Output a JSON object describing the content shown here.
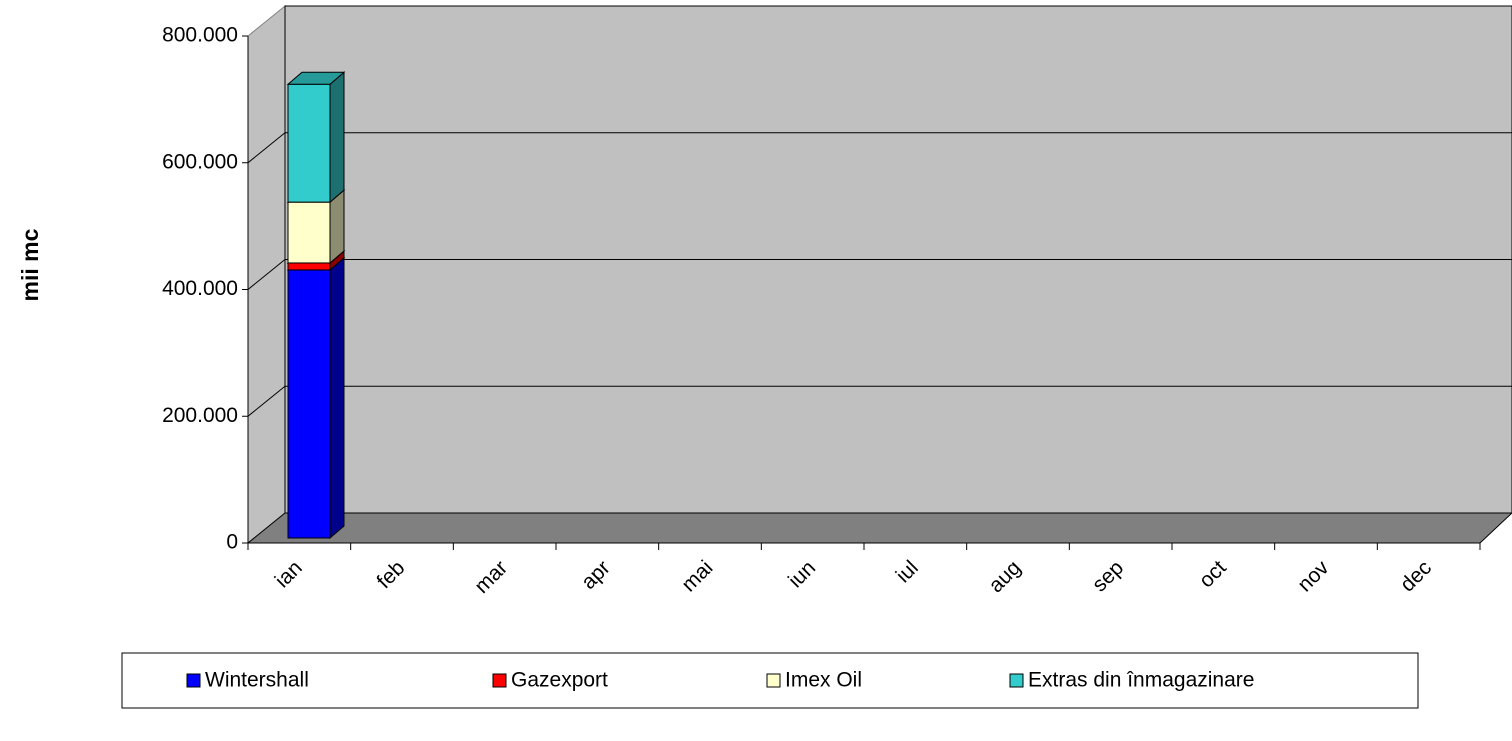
{
  "chart_data": {
    "type": "bar3d_stacked",
    "y_label": "mii mc",
    "categories": [
      "ian",
      "feb",
      "mar",
      "apr",
      "mai",
      "iun",
      "iul",
      "aug",
      "sep",
      "oct",
      "nov",
      "dec"
    ],
    "series": [
      {
        "name": "Wintershall",
        "color": "#0000ff",
        "values": [
          423000,
          null,
          null,
          null,
          null,
          null,
          null,
          null,
          null,
          null,
          null,
          null
        ]
      },
      {
        "name": "Gazexport",
        "color": "#ff0000",
        "values": [
          11000,
          null,
          null,
          null,
          null,
          null,
          null,
          null,
          null,
          null,
          null,
          null
        ]
      },
      {
        "name": "Imex Oil",
        "color": "#ffffcc",
        "values": [
          96000,
          null,
          null,
          null,
          null,
          null,
          null,
          null,
          null,
          null,
          null,
          null
        ]
      },
      {
        "name": "Extras din înmagazinare",
        "color": "#33cccc",
        "values": [
          186000,
          null,
          null,
          null,
          null,
          null,
          null,
          null,
          null,
          null,
          null,
          null
        ]
      }
    ],
    "ylim": [
      0,
      800000
    ],
    "yticks": [
      0,
      {
        "value": 200000,
        "label": "200.000"
      },
      {
        "value": 400000,
        "label": "400.000"
      },
      {
        "value": 600000,
        "label": "600.000"
      },
      {
        "value": 800000,
        "label": "800.000"
      }
    ],
    "grid": true
  }
}
